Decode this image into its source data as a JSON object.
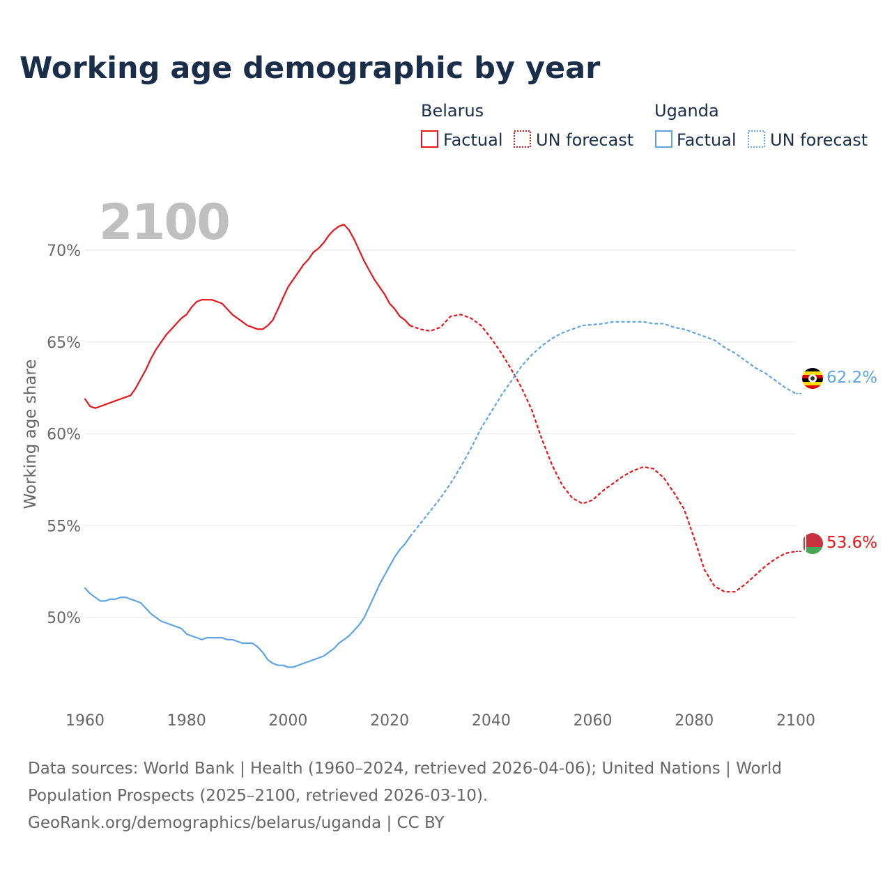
{
  "chart_data": {
    "type": "line",
    "title": "Working age demographic by year",
    "ylabel": "Working age share",
    "current_year": "2100",
    "xlim": [
      1960,
      2100
    ],
    "ylim": [
      45.3,
      73
    ],
    "x_ticks": [
      1960,
      1980,
      2000,
      2020,
      2040,
      2060,
      2080,
      2100
    ],
    "y_ticks": [
      50,
      55,
      60,
      65,
      70
    ],
    "y_tick_labels": [
      "50%",
      "55%",
      "60%",
      "65%",
      "70%"
    ],
    "legend": {
      "groups": [
        {
          "name": "Belarus",
          "items": [
            "Factual",
            "UN forecast"
          ],
          "color": "#e8141b"
        },
        {
          "name": "Uganda",
          "items": [
            "Factual",
            "UN forecast"
          ],
          "color": "#5fa3e0"
        }
      ]
    },
    "series": [
      {
        "name": "Belarus",
        "color": "#e8141b",
        "end_label": "53.6%",
        "flag": "belarus-flag-icon",
        "factual": {
          "x": [
            1960,
            1961,
            1962,
            1963,
            1965,
            1967,
            1969,
            1970,
            1971,
            1972,
            1973,
            1974,
            1975,
            1976,
            1977,
            1978,
            1979,
            1980,
            1981,
            1982,
            1983,
            1984,
            1985,
            1986,
            1987,
            1988,
            1989,
            1990,
            1991,
            1992,
            1993,
            1994,
            1995,
            1996,
            1997,
            1998,
            1999,
            2000,
            2001,
            2002,
            2003,
            2004,
            2005,
            2006,
            2007,
            2008,
            2009,
            2010,
            2011,
            2012,
            2013,
            2014,
            2015,
            2016,
            2017,
            2018,
            2019,
            2020,
            2021,
            2022,
            2023,
            2024
          ],
          "y": [
            61.9,
            61.5,
            61.4,
            61.5,
            61.7,
            61.9,
            62.1,
            62.5,
            63.0,
            63.5,
            64.1,
            64.6,
            65.0,
            65.4,
            65.7,
            66.0,
            66.3,
            66.5,
            66.9,
            67.2,
            67.3,
            67.3,
            67.3,
            67.2,
            67.1,
            66.8,
            66.5,
            66.3,
            66.1,
            65.9,
            65.8,
            65.7,
            65.7,
            65.9,
            66.2,
            66.8,
            67.4,
            68.0,
            68.4,
            68.8,
            69.2,
            69.5,
            69.9,
            70.1,
            70.4,
            70.8,
            71.1,
            71.3,
            71.4,
            71.1,
            70.6,
            70.0,
            69.4,
            68.9,
            68.4,
            68.0,
            67.6,
            67.1,
            66.8,
            66.4,
            66.2,
            65.9
          ]
        },
        "forecast": {
          "x": [
            2024,
            2026,
            2028,
            2030,
            2032,
            2034,
            2036,
            2038,
            2040,
            2042,
            2044,
            2046,
            2048,
            2050,
            2052,
            2054,
            2056,
            2058,
            2060,
            2062,
            2064,
            2066,
            2068,
            2070,
            2072,
            2074,
            2076,
            2078,
            2080,
            2082,
            2084,
            2086,
            2088,
            2090,
            2092,
            2094,
            2096,
            2098,
            2100
          ],
          "y": [
            65.9,
            65.7,
            65.6,
            65.8,
            66.4,
            66.5,
            66.3,
            65.9,
            65.2,
            64.4,
            63.5,
            62.5,
            61.3,
            59.7,
            58.3,
            57.2,
            56.5,
            56.2,
            56.4,
            56.9,
            57.3,
            57.7,
            58.0,
            58.2,
            58.1,
            57.6,
            56.8,
            55.9,
            54.3,
            52.6,
            51.7,
            51.4,
            51.4,
            51.8,
            52.3,
            52.8,
            53.2,
            53.5,
            53.6
          ]
        }
      },
      {
        "name": "Uganda",
        "color": "#5fa3e0",
        "end_label": "62.2%",
        "flag": "uganda-flag-icon",
        "factual": {
          "x": [
            1960,
            1961,
            1962,
            1963,
            1964,
            1965,
            1966,
            1967,
            1968,
            1969,
            1970,
            1971,
            1972,
            1973,
            1974,
            1975,
            1976,
            1977,
            1978,
            1979,
            1980,
            1981,
            1982,
            1983,
            1984,
            1985,
            1986,
            1987,
            1988,
            1989,
            1990,
            1991,
            1992,
            1993,
            1994,
            1995,
            1996,
            1997,
            1998,
            1999,
            2000,
            2001,
            2002,
            2003,
            2004,
            2005,
            2006,
            2007,
            2008,
            2009,
            2010,
            2011,
            2012,
            2013,
            2014,
            2015,
            2016,
            2017,
            2018,
            2019,
            2020,
            2021,
            2022,
            2023,
            2024
          ],
          "y": [
            51.6,
            51.3,
            51.1,
            50.9,
            50.9,
            51.0,
            51.0,
            51.1,
            51.1,
            51.0,
            50.9,
            50.8,
            50.5,
            50.2,
            50.0,
            49.8,
            49.7,
            49.6,
            49.5,
            49.4,
            49.1,
            49.0,
            48.9,
            48.8,
            48.9,
            48.9,
            48.9,
            48.9,
            48.8,
            48.8,
            48.7,
            48.6,
            48.6,
            48.6,
            48.4,
            48.1,
            47.7,
            47.5,
            47.4,
            47.4,
            47.3,
            47.3,
            47.4,
            47.5,
            47.6,
            47.7,
            47.8,
            47.9,
            48.1,
            48.3,
            48.6,
            48.8,
            49.0,
            49.3,
            49.6,
            50.0,
            50.6,
            51.2,
            51.8,
            52.3,
            52.8,
            53.3,
            53.7,
            54.0,
            54.4
          ]
        },
        "forecast": {
          "x": [
            2024,
            2026,
            2028,
            2030,
            2032,
            2034,
            2036,
            2038,
            2040,
            2042,
            2044,
            2046,
            2048,
            2050,
            2052,
            2054,
            2056,
            2058,
            2060,
            2062,
            2064,
            2066,
            2068,
            2070,
            2072,
            2074,
            2076,
            2078,
            2080,
            2082,
            2084,
            2086,
            2088,
            2090,
            2092,
            2094,
            2096,
            2098,
            2100
          ],
          "y": [
            54.4,
            55.1,
            55.8,
            56.5,
            57.3,
            58.2,
            59.2,
            60.3,
            61.2,
            62.1,
            62.9,
            63.7,
            64.3,
            64.8,
            65.2,
            65.5,
            65.7,
            65.9,
            65.95,
            66.0,
            66.1,
            66.1,
            66.1,
            66.1,
            66.0,
            66.0,
            65.8,
            65.7,
            65.5,
            65.3,
            65.1,
            64.7,
            64.4,
            64.0,
            63.6,
            63.3,
            62.9,
            62.5,
            62.2
          ]
        }
      }
    ]
  },
  "footer": {
    "line1": "Data sources: World Bank | Health (1960–2024, retrieved 2026-04-06); United Nations | World",
    "line2": "Population Prospects (2025–2100, retrieved 2026-03-10).",
    "line3": "GeoRank.org/demographics/belarus/uganda | CC BY"
  }
}
